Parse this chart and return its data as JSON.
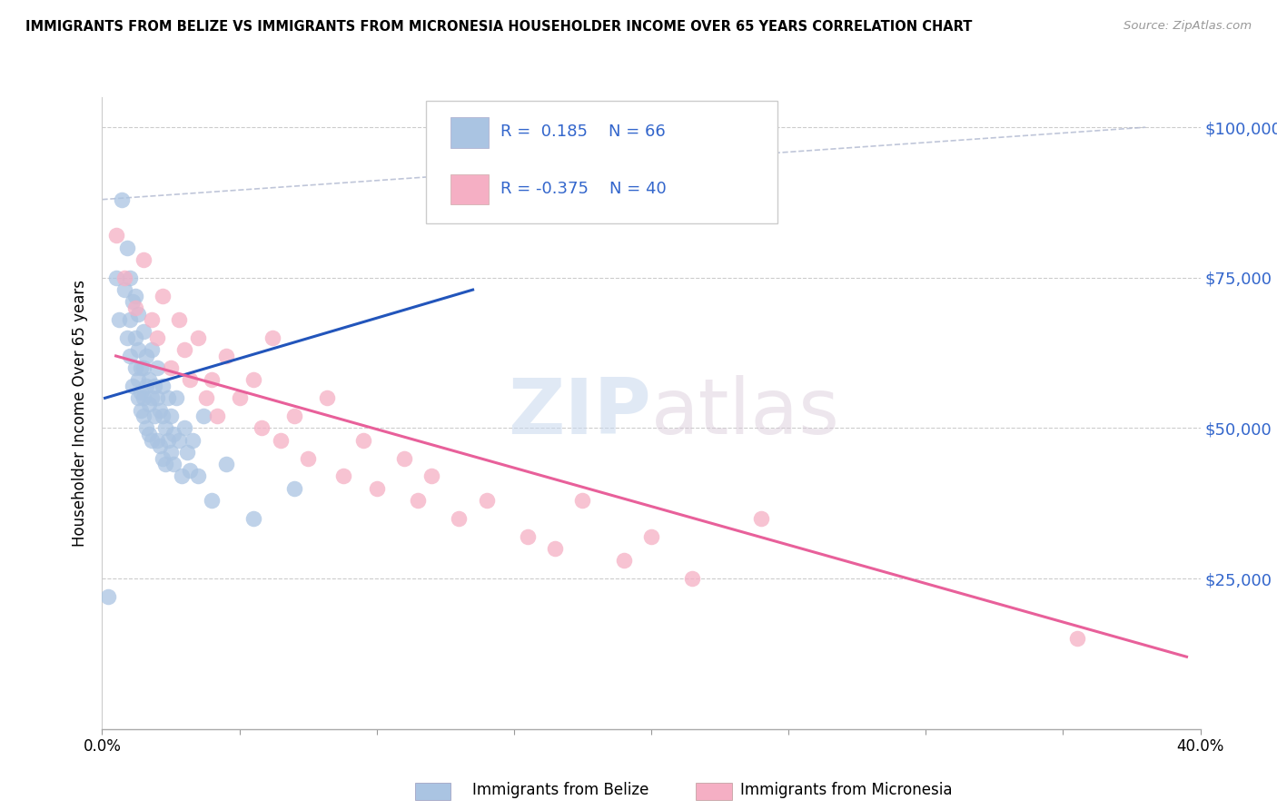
{
  "title": "IMMIGRANTS FROM BELIZE VS IMMIGRANTS FROM MICRONESIA HOUSEHOLDER INCOME OVER 65 YEARS CORRELATION CHART",
  "source": "Source: ZipAtlas.com",
  "ylabel": "Householder Income Over 65 years",
  "xlim": [
    0.0,
    0.4
  ],
  "ylim": [
    0,
    105000
  ],
  "yticks": [
    0,
    25000,
    50000,
    75000,
    100000
  ],
  "ytick_labels": [
    "",
    "$25,000",
    "$50,000",
    "$75,000",
    "$100,000"
  ],
  "xticks": [
    0.0,
    0.05,
    0.1,
    0.15,
    0.2,
    0.25,
    0.3,
    0.35,
    0.4
  ],
  "xtick_labels": [
    "0.0%",
    "",
    "",
    "",
    "",
    "",
    "",
    "",
    "40.0%"
  ],
  "belize_color": "#aac4e2",
  "micronesia_color": "#f5afc4",
  "belize_line_color": "#2255bb",
  "micronesia_line_color": "#e8609a",
  "dashed_line_color": "#b0b8d0",
  "belize_R": 0.185,
  "belize_N": 66,
  "micronesia_R": -0.375,
  "micronesia_N": 40,
  "legend_label_belize": "Immigrants from Belize",
  "legend_label_micronesia": "Immigrants from Micronesia",
  "watermark_zip": "ZIP",
  "watermark_atlas": "atlas",
  "belize_x": [
    0.002,
    0.005,
    0.006,
    0.007,
    0.008,
    0.009,
    0.009,
    0.01,
    0.01,
    0.01,
    0.011,
    0.011,
    0.012,
    0.012,
    0.012,
    0.013,
    0.013,
    0.013,
    0.013,
    0.014,
    0.014,
    0.014,
    0.015,
    0.015,
    0.015,
    0.015,
    0.016,
    0.016,
    0.016,
    0.017,
    0.017,
    0.017,
    0.018,
    0.018,
    0.018,
    0.019,
    0.019,
    0.02,
    0.02,
    0.02,
    0.021,
    0.021,
    0.022,
    0.022,
    0.022,
    0.023,
    0.023,
    0.024,
    0.024,
    0.025,
    0.025,
    0.026,
    0.026,
    0.027,
    0.028,
    0.029,
    0.03,
    0.031,
    0.032,
    0.033,
    0.035,
    0.037,
    0.04,
    0.045,
    0.055,
    0.07
  ],
  "belize_y": [
    22000,
    75000,
    68000,
    88000,
    73000,
    65000,
    80000,
    68000,
    75000,
    62000,
    57000,
    71000,
    65000,
    60000,
    72000,
    58000,
    63000,
    55000,
    69000,
    60000,
    56000,
    53000,
    66000,
    60000,
    55000,
    52000,
    62000,
    57000,
    50000,
    58000,
    54000,
    49000,
    63000,
    55000,
    48000,
    57000,
    52000,
    60000,
    55000,
    48000,
    53000,
    47000,
    52000,
    57000,
    45000,
    50000,
    44000,
    48000,
    55000,
    46000,
    52000,
    44000,
    49000,
    55000,
    48000,
    42000,
    50000,
    46000,
    43000,
    48000,
    42000,
    52000,
    38000,
    44000,
    35000,
    40000
  ],
  "micronesia_x": [
    0.005,
    0.008,
    0.012,
    0.015,
    0.018,
    0.02,
    0.022,
    0.025,
    0.028,
    0.03,
    0.032,
    0.035,
    0.038,
    0.04,
    0.042,
    0.045,
    0.05,
    0.055,
    0.058,
    0.062,
    0.065,
    0.07,
    0.075,
    0.082,
    0.088,
    0.095,
    0.1,
    0.11,
    0.115,
    0.12,
    0.13,
    0.14,
    0.155,
    0.165,
    0.175,
    0.19,
    0.2,
    0.215,
    0.24,
    0.355
  ],
  "micronesia_y": [
    82000,
    75000,
    70000,
    78000,
    68000,
    65000,
    72000,
    60000,
    68000,
    63000,
    58000,
    65000,
    55000,
    58000,
    52000,
    62000,
    55000,
    58000,
    50000,
    65000,
    48000,
    52000,
    45000,
    55000,
    42000,
    48000,
    40000,
    45000,
    38000,
    42000,
    35000,
    38000,
    32000,
    30000,
    38000,
    28000,
    32000,
    25000,
    35000,
    15000
  ]
}
